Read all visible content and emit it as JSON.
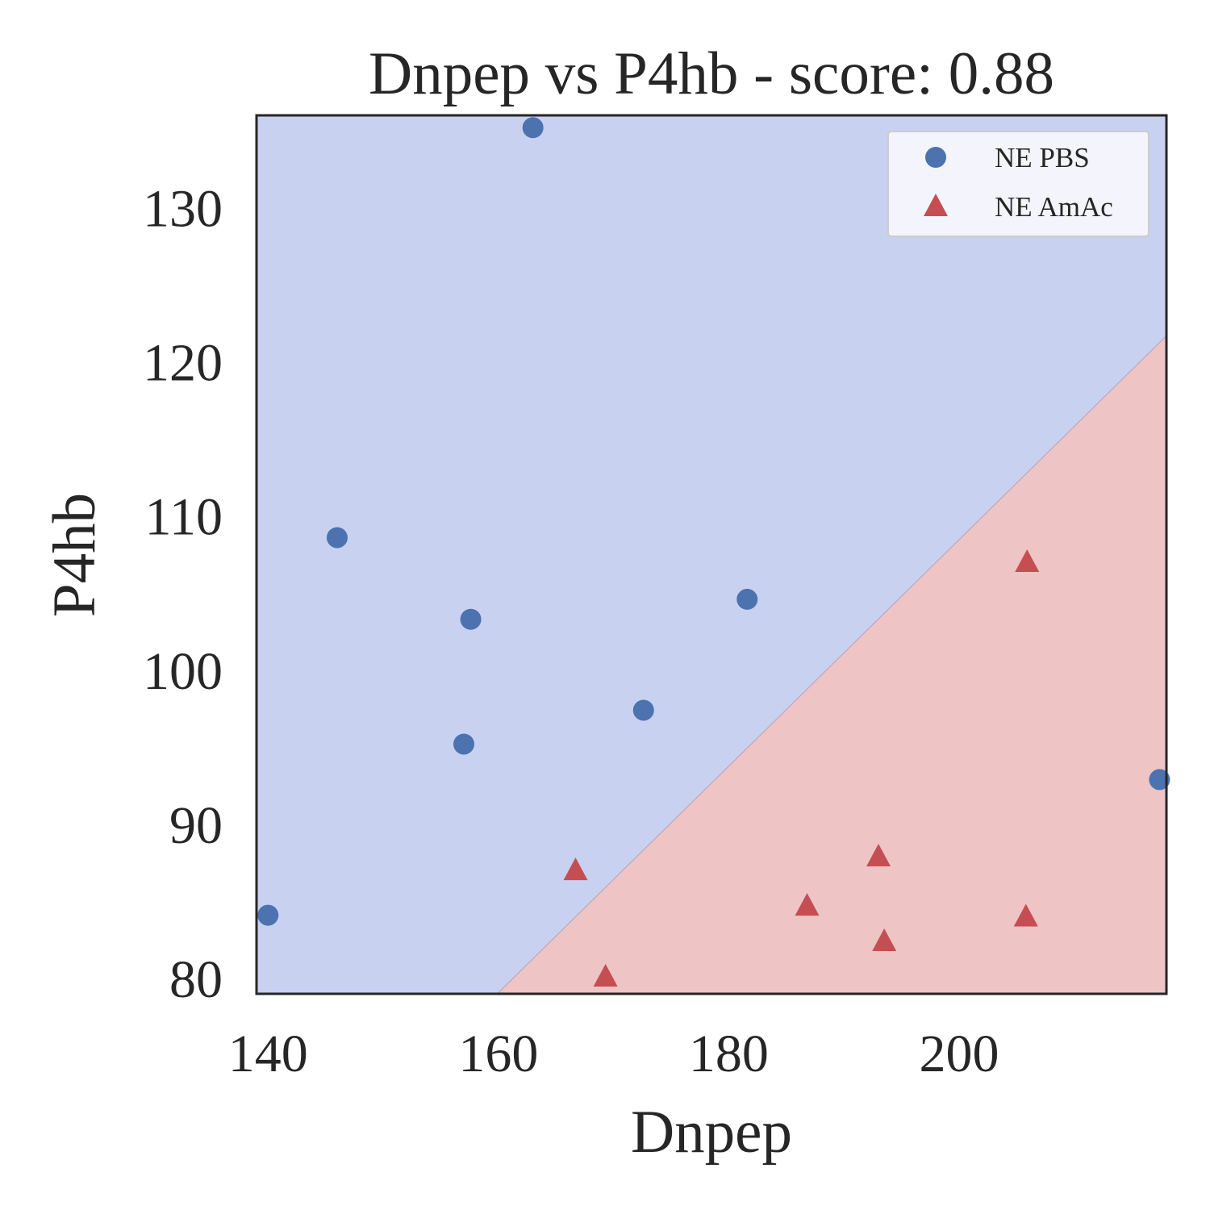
{
  "chart_data": {
    "type": "scatter",
    "title": "Dnpep vs P4hb - score: 0.88",
    "xlabel": "Dnpep",
    "ylabel": "P4hb",
    "xlim": [
      139,
      218
    ],
    "ylim": [
      79,
      136
    ],
    "xticks": [
      140,
      160,
      180,
      200
    ],
    "yticks": [
      80,
      90,
      100,
      110,
      120,
      130
    ],
    "grid": false,
    "legend_position": "top-right",
    "decision_boundary": {
      "description": "linear boundary separating class regions",
      "points": [
        [
          159.9,
          79
        ],
        [
          218,
          121.7
        ]
      ],
      "region_above": "NE PBS",
      "region_below": "NE AmAc",
      "colors": {
        "NE PBS": "#c9d1f1",
        "NE AmAc": "#eec4c4"
      }
    },
    "series": [
      {
        "name": "NE PBS",
        "marker": "circle",
        "color": "#4c72b0",
        "points": [
          {
            "x": 140.0,
            "y": 84.1
          },
          {
            "x": 146.0,
            "y": 108.6
          },
          {
            "x": 157.0,
            "y": 95.2
          },
          {
            "x": 157.6,
            "y": 103.3
          },
          {
            "x": 163.0,
            "y": 135.2
          },
          {
            "x": 172.6,
            "y": 97.4
          },
          {
            "x": 181.6,
            "y": 104.6
          },
          {
            "x": 217.4,
            "y": 92.9
          }
        ]
      },
      {
        "name": "NE AmAc",
        "marker": "triangle",
        "color": "#c44e52",
        "points": [
          {
            "x": 166.7,
            "y": 87.0
          },
          {
            "x": 169.3,
            "y": 80.1
          },
          {
            "x": 186.8,
            "y": 84.7
          },
          {
            "x": 193.0,
            "y": 87.9
          },
          {
            "x": 193.5,
            "y": 82.4
          },
          {
            "x": 205.8,
            "y": 84.0
          },
          {
            "x": 205.9,
            "y": 107.0
          }
        ]
      }
    ]
  }
}
